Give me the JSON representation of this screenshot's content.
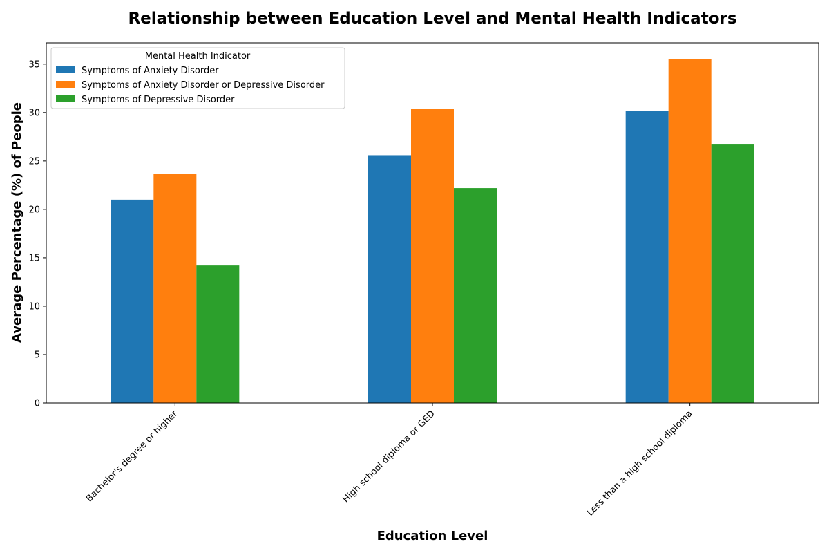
{
  "chart_data": {
    "type": "bar",
    "title": "Relationship between Education Level and Mental Health Indicators",
    "xlabel": "Education Level",
    "ylabel": "Average Percentage (%) of People",
    "categories": [
      "Bachelor's degree or higher",
      "High school diploma or GED",
      "Less than a high school diploma"
    ],
    "series": [
      {
        "name": "Symptoms of Anxiety Disorder",
        "color": "#1f77b4",
        "values": [
          21.0,
          25.6,
          30.2
        ]
      },
      {
        "name": "Symptoms of Anxiety Disorder or Depressive Disorder",
        "color": "#ff7f0e",
        "values": [
          23.7,
          30.4,
          35.5
        ]
      },
      {
        "name": "Symptoms of Depressive Disorder",
        "color": "#2ca02c",
        "values": [
          14.2,
          22.2,
          26.7
        ]
      }
    ],
    "ylim": [
      0,
      37.2
    ],
    "yticks": [
      0,
      5,
      10,
      15,
      20,
      25,
      30,
      35
    ],
    "grid": false,
    "legend": {
      "title": "Mental Health Indicator",
      "placement": "top-left"
    }
  }
}
